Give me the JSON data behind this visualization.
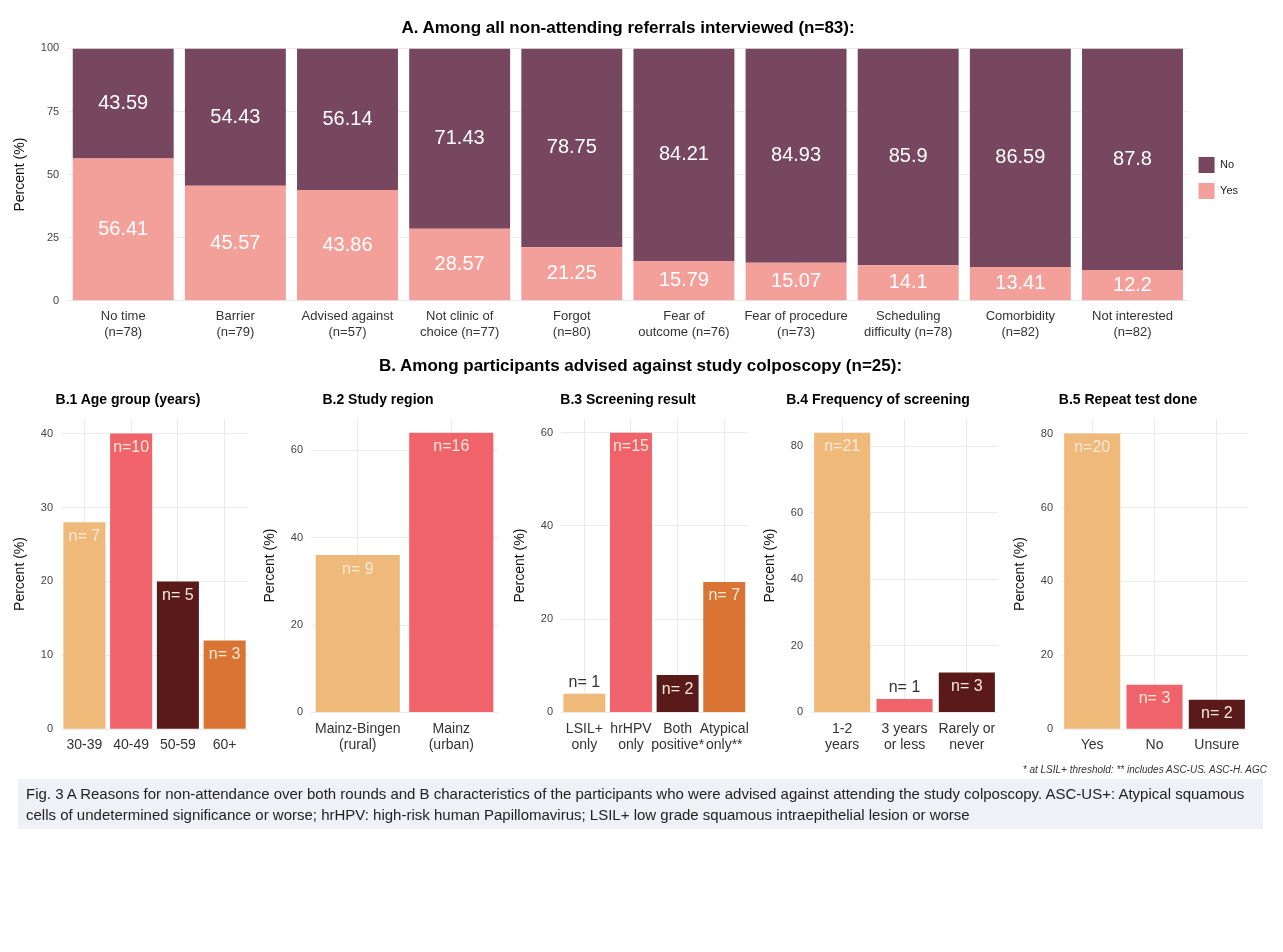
{
  "chart_data": [
    {
      "type": "bar",
      "title": "A. Among all non-attending referrals interviewed (n=83):",
      "ylabel": "Percent (%)",
      "categories": [
        "No time\n(n=78)",
        "Barrier\n(n=79)",
        "Advised against\n(n=57)",
        "Not clinic of\nchoice (n=77)",
        "Forgot\n(n=80)",
        "Fear of\noutcome (n=76)",
        "Fear of procedure\n(n=73)",
        "Scheduling\ndifficulty (n=78)",
        "Comorbidity\n(n=82)",
        "Not interested\n(n=82)"
      ],
      "stacked": true,
      "ylim": [
        0,
        100
      ],
      "yticks": [
        0,
        25,
        50,
        75,
        100
      ],
      "grid": true,
      "legend": "right",
      "data_labels": true,
      "series": [
        {
          "name": "Yes",
          "color": "#f4a09a",
          "values": [
            56.41,
            45.57,
            43.86,
            28.57,
            21.25,
            15.79,
            15.07,
            14.1,
            13.41,
            12.2
          ]
        },
        {
          "name": "No",
          "color": "#77475f",
          "values": [
            43.59,
            54.43,
            56.14,
            71.43,
            78.75,
            84.21,
            84.93,
            85.9,
            86.59,
            87.8
          ]
        }
      ]
    },
    {
      "type": "other",
      "title": "B. Among participants advised against study colposcopy (n=25):"
    },
    {
      "type": "bar",
      "title": "B.1 Age group (years)",
      "ylabel": "Percent (%)",
      "categories": [
        "30-39",
        "40-49",
        "50-59",
        "60+"
      ],
      "values": [
        28,
        40,
        20,
        12
      ],
      "annotations": [
        {
          "text": "n= 7",
          "x": "30-39",
          "y": 28
        },
        {
          "text": "n=10",
          "x": "40-49",
          "y": 40
        },
        {
          "text": "n= 5",
          "x": "50-59",
          "y": 20
        },
        {
          "text": "n= 3",
          "x": "60+",
          "y": 12
        }
      ],
      "colors": [
        "#efb97a",
        "#f0636a",
        "#5a1a1a",
        "#d97435"
      ],
      "ylim": [
        0,
        42
      ],
      "yticks": [
        0,
        10,
        20,
        30,
        40
      ],
      "grid": true
    },
    {
      "type": "bar",
      "title": "B.2 Study region",
      "ylabel": "Percent (%)",
      "categories": [
        "Mainz-Bingen\n(rural)",
        "Mainz\n(urban)"
      ],
      "values": [
        36,
        64
      ],
      "annotations": [
        {
          "text": "n= 9",
          "x": "Mainz-Bingen\n(rural)",
          "y": 36
        },
        {
          "text": "n=16",
          "x": "Mainz\n(urban)",
          "y": 64
        }
      ],
      "colors": [
        "#efb97a",
        "#f0636a"
      ],
      "ylim": [
        0,
        67.2
      ],
      "yticks": [
        0,
        20,
        40,
        60
      ],
      "grid": true
    },
    {
      "type": "bar",
      "title": "B.3 Screening result",
      "ylabel": "Percent (%)",
      "categories": [
        "LSIL+\nonly",
        "hrHPV\nonly",
        "Both\npositive*",
        "Atypical\nonly**"
      ],
      "values": [
        4,
        60,
        8,
        28
      ],
      "annotations": [
        {
          "text": "n= 1",
          "x": "LSIL+\nonly",
          "y": 4
        },
        {
          "text": "n=15",
          "x": "hrHPV\nonly",
          "y": 60
        },
        {
          "text": "n= 2",
          "x": "Both\npositive*",
          "y": 8
        },
        {
          "text": "n= 7",
          "x": "Atypical\nonly**",
          "y": 28
        }
      ],
      "colors": [
        "#efb97a",
        "#f0636a",
        "#5a1a1a",
        "#d97435"
      ],
      "ylim": [
        0,
        63
      ],
      "yticks": [
        0,
        20,
        40,
        60
      ],
      "grid": true
    },
    {
      "type": "bar",
      "title": "B.4 Frequency of screening",
      "ylabel": "Percent (%)",
      "categories": [
        "1-2\nyears",
        "3 years\nor less",
        "Rarely or\nnever"
      ],
      "values": [
        84,
        4,
        12
      ],
      "annotations": [
        {
          "text": "n=21",
          "x": "1-2\nyears",
          "y": 84
        },
        {
          "text": "n= 1",
          "x": "3 years\nor less",
          "y": 4
        },
        {
          "text": "n= 3",
          "x": "Rarely or\nnever",
          "y": 12
        }
      ],
      "colors": [
        "#efb97a",
        "#f0636a",
        "#5a1a1a"
      ],
      "ylim": [
        0,
        88.2
      ],
      "yticks": [
        0,
        20,
        40,
        60,
        80
      ],
      "grid": true
    },
    {
      "type": "bar",
      "title": "B.5 Repeat test done",
      "ylabel": "Percent (%)",
      "categories": [
        "Yes",
        "No",
        "Unsure"
      ],
      "values": [
        80,
        12,
        8
      ],
      "annotations": [
        {
          "text": "n=20",
          "x": "Yes",
          "y": 80
        },
        {
          "text": "n= 3",
          "x": "No",
          "y": 12
        },
        {
          "text": "n= 2",
          "x": "Unsure",
          "y": 8
        }
      ],
      "colors": [
        "#efb97a",
        "#f0636a",
        "#5a1a1a"
      ],
      "ylim": [
        0,
        84
      ],
      "yticks": [
        0,
        20,
        40,
        60,
        80
      ],
      "grid": true
    },
    {
      "type": "other",
      "annotations": [
        "* at LSIL+ threshold: ** includes ASC-US. ASC-H. AGC",
        "Fig. 3 A Reasons for non-attendance over both rounds and B characteristics of the participants who were advised against attending the study colposcopy. ASC-US+: Atypical squamous cells of undetermined significance or worse; hrHPV: high-risk human Papillomavirus; LSIL+ low grade squamous intraepithelial lesion or worse"
      ]
    }
  ]
}
